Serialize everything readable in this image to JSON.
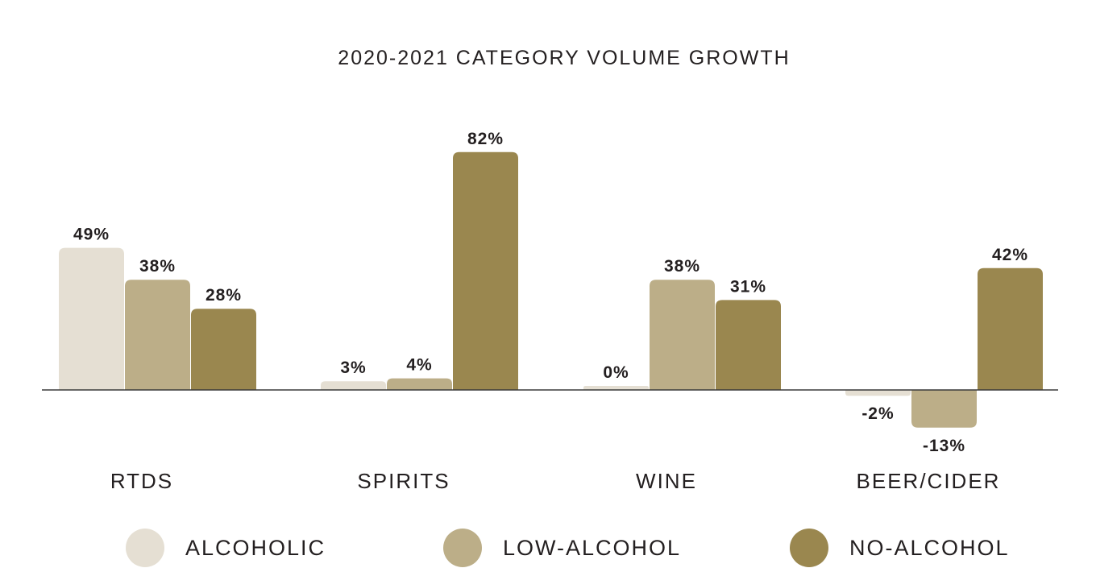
{
  "chart_data": {
    "type": "bar",
    "title": "2020-2021 CATEGORY VOLUME GROWTH",
    "categories": [
      "RTDS",
      "SPIRITS",
      "WINE",
      "BEER/CIDER"
    ],
    "series": [
      {
        "name": "ALCOHOLIC",
        "color": "#e5dfd3",
        "values": [
          49,
          3,
          0,
          -2
        ],
        "labels": [
          "49%",
          "3%",
          "0%",
          "-2%"
        ]
      },
      {
        "name": "LOW-ALCOHOL",
        "color": "#bcae88",
        "values": [
          38,
          4,
          38,
          -13
        ],
        "labels": [
          "38%",
          "4%",
          "38%",
          "-13%"
        ]
      },
      {
        "name": "NO-ALCOHOL",
        "color": "#9a874f",
        "values": [
          28,
          82,
          31,
          42
        ],
        "labels": [
          "28%",
          "82%",
          "31%",
          "42%"
        ]
      }
    ],
    "ylim": [
      -20,
      90
    ],
    "xlabel": "",
    "ylabel": "",
    "grid": false,
    "legend_position": "bottom"
  }
}
